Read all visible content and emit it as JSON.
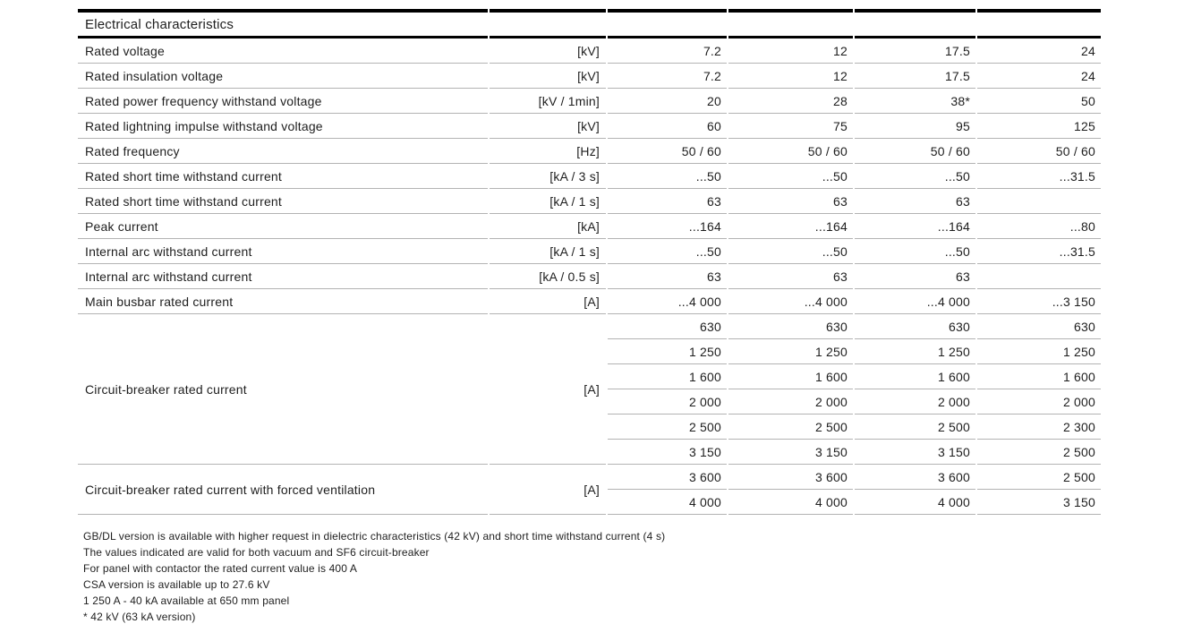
{
  "table": {
    "title": "Electrical characteristics",
    "rows": [
      {
        "label": "Rated voltage",
        "unit": "[kV]",
        "values": [
          "7.2",
          "12",
          "17.5",
          "24"
        ]
      },
      {
        "label": "Rated insulation voltage",
        "unit": "[kV]",
        "values": [
          "7.2",
          "12",
          "17.5",
          "24"
        ]
      },
      {
        "label": "Rated power frequency withstand voltage",
        "unit": "[kV / 1min]",
        "values": [
          "20",
          "28",
          "38*",
          "50"
        ]
      },
      {
        "label": "Rated lightning impulse withstand voltage",
        "unit": "[kV]",
        "values": [
          "60",
          "75",
          "95",
          "125"
        ]
      },
      {
        "label": "Rated frequency",
        "unit": "[Hz]",
        "values": [
          "50 / 60",
          "50 / 60",
          "50 / 60",
          "50 / 60"
        ]
      },
      {
        "label": "Rated short time withstand current",
        "unit": "[kA / 3 s]",
        "values": [
          "...50",
          "...50",
          "...50",
          "...31.5"
        ]
      },
      {
        "label": "Rated short time withstand current",
        "unit": "[kA / 1 s]",
        "values": [
          "63",
          "63",
          "63",
          ""
        ]
      },
      {
        "label": "Peak current",
        "unit": "[kA]",
        "values": [
          "...164",
          "...164",
          "...164",
          "...80"
        ]
      },
      {
        "label": "Internal arc withstand current",
        "unit": "[kA / 1 s]",
        "values": [
          "...50",
          "...50",
          "...50",
          "...31.5"
        ]
      },
      {
        "label": "Internal arc withstand current",
        "unit": "[kA / 0.5 s]",
        "values": [
          "63",
          "63",
          "63",
          ""
        ]
      },
      {
        "label": "Main busbar rated current",
        "unit": "[A]",
        "values": [
          "...4 000",
          "...4 000",
          "...4 000",
          "...3 150"
        ]
      },
      {
        "label": "Circuit-breaker rated current",
        "unit": "[A]",
        "subrows": [
          [
            "630",
            "630",
            "630",
            "630"
          ],
          [
            "1 250",
            "1 250",
            "1 250",
            "1 250"
          ],
          [
            "1 600",
            "1 600",
            "1 600",
            "1 600"
          ],
          [
            "2 000",
            "2 000",
            "2 000",
            "2 000"
          ],
          [
            "2 500",
            "2 500",
            "2 500",
            "2 300"
          ],
          [
            "3 150",
            "3 150",
            "3 150",
            "2 500"
          ]
        ]
      },
      {
        "label": "Circuit-breaker rated current with forced ventilation",
        "unit": "[A]",
        "subrows": [
          [
            "3 600",
            "3 600",
            "3 600",
            "2 500"
          ],
          [
            "4 000",
            "4 000",
            "4 000",
            "3 150"
          ]
        ]
      }
    ]
  },
  "footnotes": [
    "GB/DL version is available with higher request in dielectric characteristics (42 kV) and short time withstand current (4 s)",
    "The values indicated are valid for both vacuum and SF6 circuit-breaker",
    "For panel with contactor the rated current value is 400 A",
    "CSA version is available up to 27.6 kV",
    "1 250 A - 40 kA available at 650 mm panel",
    "* 42 kV (63 kA version)"
  ],
  "colors": {
    "text": "#1e1e1e",
    "thick_rule": "#000000",
    "thin_rule": "#b3b3b3",
    "background": "#ffffff"
  }
}
